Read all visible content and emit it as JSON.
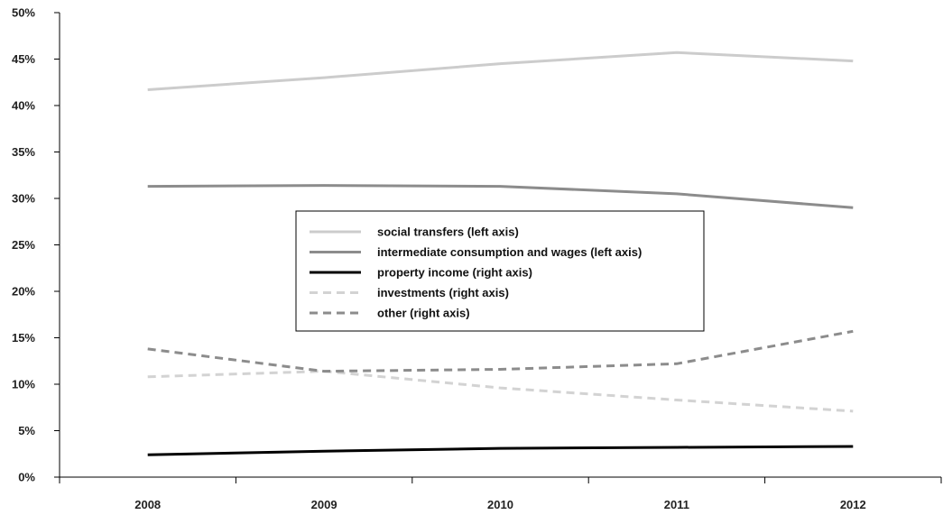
{
  "chart_data": {
    "type": "line",
    "categories": [
      "2008",
      "2009",
      "2010",
      "2011",
      "2012"
    ],
    "ylim": [
      0,
      50
    ],
    "ytick_step": 5,
    "ytick_labels": [
      "0%",
      "5%",
      "10%",
      "15%",
      "20%",
      "25%",
      "30%",
      "35%",
      "40%",
      "45%",
      "50%"
    ],
    "grid": false,
    "legend_position": "center",
    "series": [
      {
        "name": "social transfers (left axis)",
        "color": "#cccccc",
        "dash": "solid",
        "values": [
          41.7,
          43.0,
          44.5,
          45.7,
          44.8
        ]
      },
      {
        "name": "intermediate consumption and wages (left axis)",
        "color": "#8c8c8c",
        "dash": "solid",
        "values": [
          31.3,
          31.4,
          31.3,
          30.5,
          29.0
        ]
      },
      {
        "name": "property income (right axis)",
        "color": "#000000",
        "dash": "solid",
        "values": [
          2.4,
          2.8,
          3.1,
          3.2,
          3.3
        ]
      },
      {
        "name": "investments (right axis)",
        "color": "#d3d3d3",
        "dash": "dashed",
        "values": [
          10.8,
          11.4,
          9.6,
          8.3,
          7.1
        ]
      },
      {
        "name": "other (right axis)",
        "color": "#8c8c8c",
        "dash": "dashed",
        "values": [
          13.8,
          11.4,
          11.6,
          12.2,
          15.7
        ]
      }
    ]
  }
}
